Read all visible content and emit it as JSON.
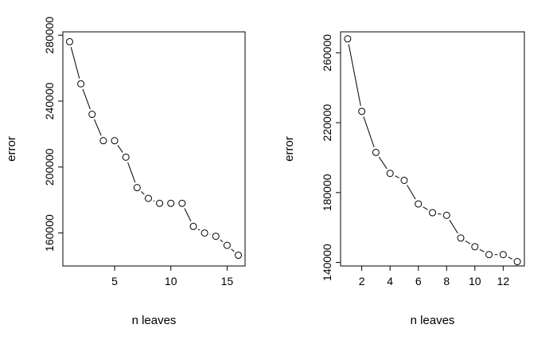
{
  "chart_data": [
    {
      "type": "line",
      "style": "points-and-lines",
      "xlabel": "n leaves",
      "ylabel": "error",
      "xlim": [
        0.4,
        16.6
      ],
      "ylim": [
        140000,
        282000
      ],
      "x_ticks": [
        5,
        10,
        15
      ],
      "y_ticks": [
        160000,
        200000,
        240000,
        280000
      ],
      "x": [
        1,
        2,
        3,
        4,
        5,
        6,
        7,
        8,
        9,
        10,
        11,
        12,
        13,
        14,
        15,
        16
      ],
      "y": [
        276000,
        250500,
        232000,
        216000,
        216000,
        206000,
        187500,
        181000,
        178000,
        178000,
        178000,
        164000,
        160000,
        158000,
        152500,
        146500
      ],
      "grid": false,
      "legend": "none"
    },
    {
      "type": "line",
      "style": "points-and-lines",
      "xlabel": "n leaves",
      "ylabel": "error",
      "xlim": [
        0.5,
        13.5
      ],
      "ylim": [
        138000,
        272000
      ],
      "x_ticks": [
        2,
        4,
        6,
        8,
        10,
        12
      ],
      "y_ticks": [
        140000,
        180000,
        220000,
        260000
      ],
      "x": [
        1,
        2,
        3,
        4,
        5,
        6,
        7,
        8,
        9,
        10,
        11,
        12,
        13
      ],
      "y": [
        268000,
        226500,
        203000,
        191000,
        187000,
        173500,
        168500,
        167000,
        154000,
        149000,
        144500,
        144500,
        140500
      ],
      "grid": false,
      "legend": "none"
    }
  ]
}
